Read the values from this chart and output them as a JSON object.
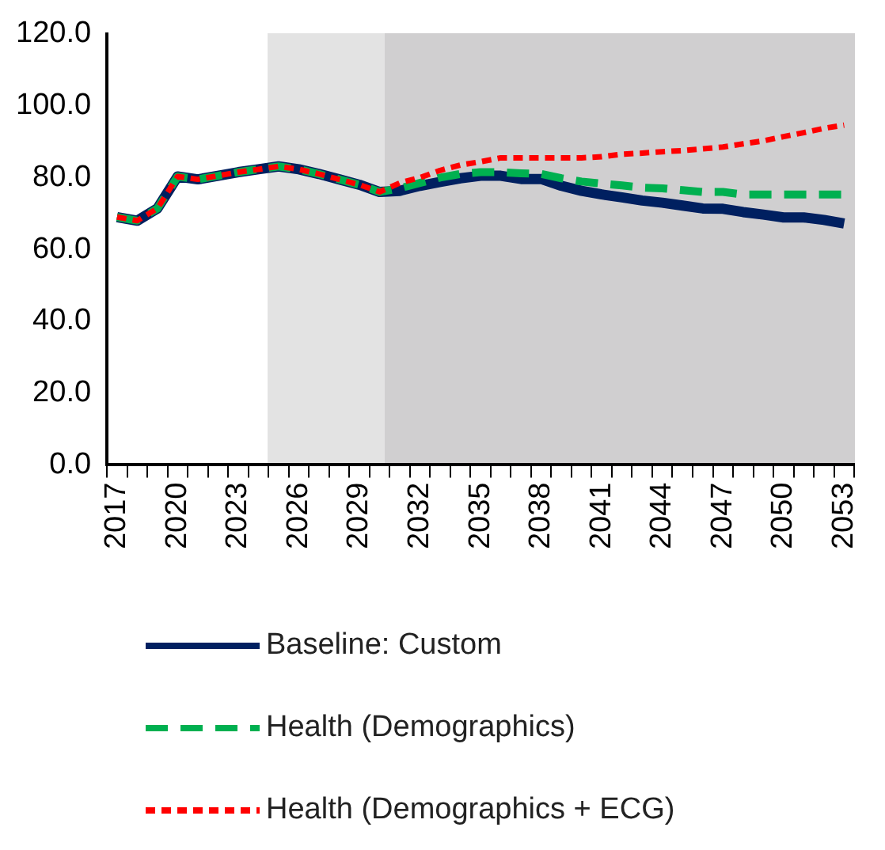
{
  "chart_data": {
    "type": "line",
    "categories": [
      "2017",
      null,
      null,
      "2020",
      null,
      null,
      "2023",
      null,
      null,
      "2026",
      null,
      null,
      "2029",
      null,
      null,
      "2032",
      null,
      null,
      "2035",
      null,
      null,
      "2038",
      null,
      null,
      "2041",
      null,
      null,
      "2044",
      null,
      null,
      "2047",
      null,
      null,
      "2050",
      null,
      null,
      "2053"
    ],
    "series": [
      {
        "name": "Baseline: Custom",
        "color": "#002060",
        "line_style": "solid",
        "values": [
          69,
          68,
          71.4,
          80.3,
          79.5,
          80.5,
          81.5,
          82.3,
          83.1,
          82.3,
          81,
          79.5,
          78,
          76,
          76.3,
          77.7,
          78.8,
          79.8,
          80.5,
          80.5,
          79.6,
          79.6,
          77.7,
          76.3,
          75.3,
          74.5,
          73.6,
          73,
          72.2,
          71.4,
          71.3,
          70.4,
          69.7,
          68.9,
          68.9,
          68.2,
          67.2
        ]
      },
      {
        "name": "Health (Demographics)",
        "color": "#00b050",
        "line_style": "dashed",
        "values": [
          69,
          68,
          71.4,
          80.3,
          79.5,
          80.5,
          81.5,
          82.3,
          83.1,
          82.3,
          81,
          79.5,
          78,
          76,
          77,
          78.5,
          80,
          81,
          81.5,
          81.5,
          81.2,
          81,
          79.8,
          78.9,
          78.3,
          77.8,
          77.2,
          77,
          76.5,
          76,
          76,
          75.3,
          75.3,
          75.3,
          75.3,
          75.3,
          75.3
        ]
      },
      {
        "name": "Health (Demographics + ECG)",
        "color": "#ff0000",
        "line_style": "dotted",
        "values": [
          69,
          68,
          71.4,
          80.3,
          79.5,
          80.5,
          81.5,
          82.3,
          83.1,
          82.3,
          81,
          79.5,
          78,
          76,
          78.5,
          80,
          82,
          83.5,
          84.4,
          85.5,
          85.5,
          85.5,
          85.5,
          85.5,
          85.8,
          86.5,
          86.8,
          87.2,
          87.5,
          88,
          88.5,
          89.4,
          90.2,
          91.4,
          92.5,
          93.7,
          94.6
        ]
      }
    ],
    "ylim": [
      0,
      120
    ],
    "yticks": [
      {
        "value": 0,
        "label": "0.0"
      },
      {
        "value": 20,
        "label": "20.0"
      },
      {
        "value": 40,
        "label": "40.0"
      },
      {
        "value": 60,
        "label": "60.0"
      },
      {
        "value": 80,
        "label": "80.0"
      },
      {
        "value": 100,
        "label": "100.0"
      },
      {
        "value": 120,
        "label": "120.0"
      }
    ],
    "grid": false,
    "legend": "bottom",
    "marker": "none"
  }
}
